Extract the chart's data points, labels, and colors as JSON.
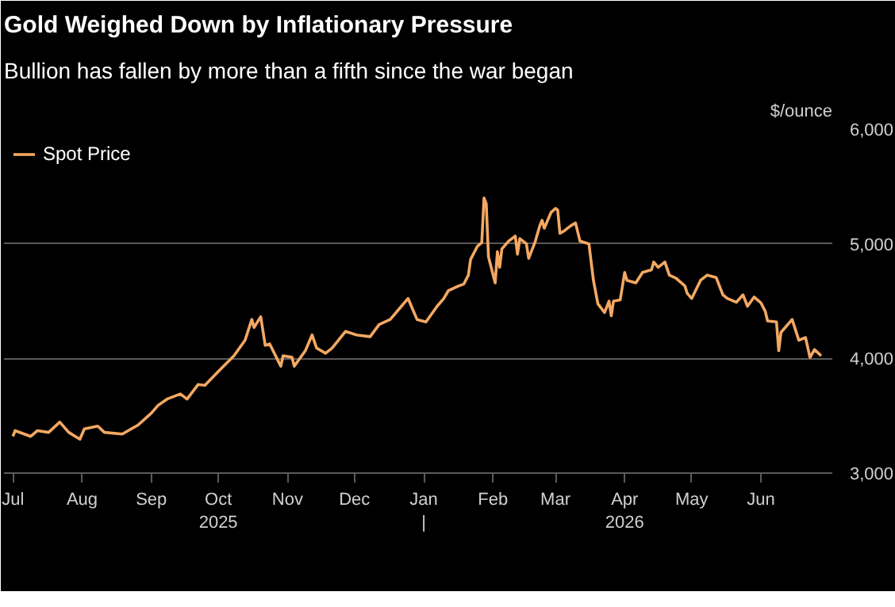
{
  "chart_data": {
    "type": "line",
    "title": "Gold Weighed Down by Inflationary Pressure",
    "subtitle": "Bullion has fallen by more than a fifth since the war began",
    "ylabel": "$/ounce",
    "x": [
      "2025-07-01",
      "2025-07-02",
      "2025-07-09",
      "2025-07-12",
      "2025-07-17",
      "2025-07-22",
      "2025-07-26",
      "2025-07-31",
      "2025-08-02",
      "2025-08-08",
      "2025-08-11",
      "2025-08-19",
      "2025-08-23",
      "2025-08-26",
      "2025-09-01",
      "2025-09-04",
      "2025-09-08",
      "2025-09-14",
      "2025-09-17",
      "2025-09-22",
      "2025-09-25",
      "2025-10-01",
      "2025-10-08",
      "2025-10-13",
      "2025-10-16",
      "2025-10-17",
      "2025-10-20",
      "2025-10-22",
      "2025-10-24",
      "2025-10-29",
      "2025-10-30",
      "2025-11-03",
      "2025-11-04",
      "2025-11-09",
      "2025-11-12",
      "2025-11-14",
      "2025-11-18",
      "2025-11-21",
      "2025-11-27",
      "2025-12-02",
      "2025-12-08",
      "2025-12-12",
      "2025-12-17",
      "2025-12-22",
      "2025-12-25",
      "2025-12-29",
      "2026-01-02",
      "2026-01-07",
      "2026-01-10",
      "2026-01-12",
      "2026-01-16",
      "2026-01-19",
      "2026-01-21",
      "2026-01-22",
      "2026-01-25",
      "2026-01-27",
      "2026-01-28",
      "2026-01-29",
      "2026-01-30",
      "2026-02-02",
      "2026-02-03",
      "2026-02-04",
      "2026-02-05",
      "2026-02-08",
      "2026-02-11",
      "2026-02-12",
      "2026-02-13",
      "2026-02-16",
      "2026-02-17",
      "2026-02-20",
      "2026-02-22",
      "2026-02-23",
      "2026-02-24",
      "2026-02-27",
      "2026-03-01",
      "2026-03-02",
      "2026-03-03",
      "2026-03-05",
      "2026-03-08",
      "2026-03-10",
      "2026-03-12",
      "2026-03-16",
      "2026-03-18",
      "2026-03-20",
      "2026-03-23",
      "2026-03-25",
      "2026-03-26",
      "2026-03-27",
      "2026-03-30",
      "2026-04-01",
      "2026-04-02",
      "2026-04-06",
      "2026-04-09",
      "2026-04-13",
      "2026-04-14",
      "2026-04-16",
      "2026-04-19",
      "2026-04-21",
      "2026-04-24",
      "2026-04-28",
      "2026-04-29",
      "2026-05-01",
      "2026-05-05",
      "2026-05-08",
      "2026-05-12",
      "2026-05-15",
      "2026-05-17",
      "2026-05-21",
      "2026-05-24",
      "2026-05-26",
      "2026-05-29",
      "2026-06-01",
      "2026-06-03",
      "2026-06-04",
      "2026-06-08",
      "2026-06-09",
      "2026-06-10",
      "2026-06-15",
      "2026-06-18",
      "2026-06-21",
      "2026-06-23",
      "2026-06-25",
      "2026-06-28"
    ],
    "series": [
      {
        "name": "Spot Price",
        "color": "#f4a862",
        "values": [
          3320,
          3370,
          3320,
          3370,
          3355,
          3445,
          3355,
          3295,
          3385,
          3410,
          3355,
          3340,
          3385,
          3418,
          3523,
          3590,
          3645,
          3690,
          3645,
          3773,
          3765,
          3886,
          4023,
          4160,
          4340,
          4270,
          4364,
          4114,
          4127,
          3932,
          4023,
          4010,
          3932,
          4068,
          4205,
          4091,
          4045,
          4091,
          4236,
          4205,
          4190,
          4295,
          4340,
          4455,
          4523,
          4340,
          4318,
          4455,
          4523,
          4590,
          4627,
          4650,
          4727,
          4864,
          4977,
          5010,
          5400,
          5350,
          4886,
          4659,
          4932,
          4795,
          4955,
          5023,
          5068,
          4909,
          5045,
          5000,
          4873,
          5023,
          5159,
          5205,
          5136,
          5273,
          5309,
          5295,
          5091,
          5114,
          5159,
          5182,
          5023,
          5000,
          4682,
          4477,
          4400,
          4500,
          4373,
          4500,
          4510,
          4750,
          4682,
          4659,
          4750,
          4773,
          4841,
          4795,
          4841,
          4727,
          4700,
          4632,
          4568,
          4523,
          4682,
          4727,
          4705,
          4555,
          4523,
          4490,
          4555,
          4455,
          4536,
          4486,
          4409,
          4327,
          4318,
          4068,
          4227,
          4340,
          4159,
          4182,
          4009,
          4077,
          4023
        ]
      }
    ],
    "xlim": [
      "2025-06-27",
      "2026-07-03"
    ],
    "xticks": [
      {
        "value": "2025-07-01",
        "label": "Jul"
      },
      {
        "value": "2025-08-01",
        "label": "Aug"
      },
      {
        "value": "2025-09-01",
        "label": "Sep"
      },
      {
        "value": "2025-10-01",
        "label": "Oct\n2025"
      },
      {
        "value": "2025-11-01",
        "label": "Nov"
      },
      {
        "value": "2025-12-01",
        "label": "Dec"
      },
      {
        "value": "2026-01-01",
        "label": "Jan\n|"
      },
      {
        "value": "2026-02-01",
        "label": "Feb"
      },
      {
        "value": "2026-03-01",
        "label": "Mar"
      },
      {
        "value": "2026-04-01",
        "label": "Apr\n2026"
      },
      {
        "value": "2026-05-01",
        "label": "May"
      },
      {
        "value": "2026-06-01",
        "label": "Jun"
      }
    ],
    "ylim": [
      3000,
      6000
    ],
    "yticks": [
      {
        "value": 3000,
        "label": "3,000"
      },
      {
        "value": 4000,
        "label": "4,000"
      },
      {
        "value": 5000,
        "label": "5,000"
      },
      {
        "value": 6000,
        "label": "6,000"
      }
    ],
    "grid": "y",
    "legend": "top left",
    "line_style": "solid"
  }
}
